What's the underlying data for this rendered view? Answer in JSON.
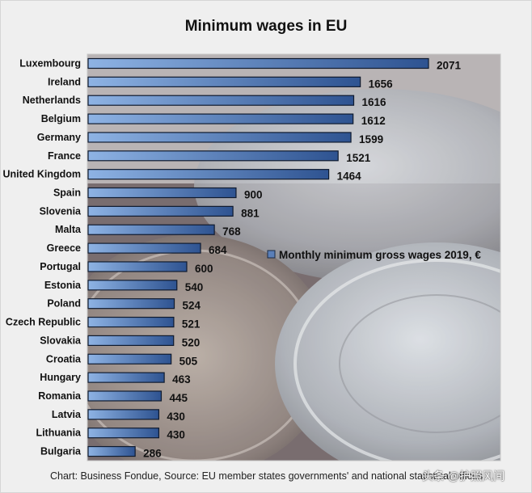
{
  "chart_data": {
    "type": "bar",
    "orientation": "horizontal",
    "title": "Minimum wages in EU",
    "categories": [
      "Luxembourg",
      "Ireland",
      "Netherlands",
      "Belgium",
      "Germany",
      "France",
      "United Kingdom",
      "Spain",
      "Slovenia",
      "Malta",
      "Greece",
      "Portugal",
      "Estonia",
      "Poland",
      "Czech Republic",
      "Slovakia",
      "Croatia",
      "Hungary",
      "Romania",
      "Latvia",
      "Lithuania",
      "Bulgaria"
    ],
    "series": [
      {
        "name": "Monthly minimum gross wages 2019, €",
        "values": [
          2071,
          1656,
          1616,
          1612,
          1599,
          1521,
          1464,
          900,
          881,
          768,
          684,
          600,
          540,
          524,
          521,
          520,
          505,
          463,
          445,
          430,
          430,
          286
        ]
      }
    ],
    "xlim": [
      0,
      2500
    ],
    "legend_position": "center-right",
    "grid": false,
    "bar_color": "#5a7fb8"
  },
  "footer": "Chart: Business Fondue, Source: EU member states governments' and national statistical offices",
  "watermark": "头条 @护照风间"
}
